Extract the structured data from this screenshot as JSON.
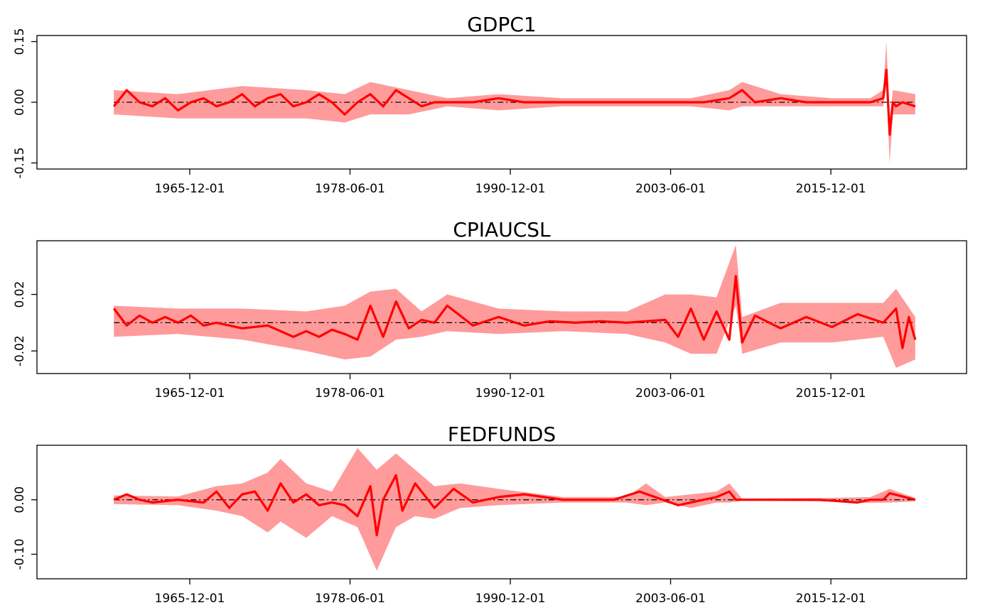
{
  "chart_data": [
    {
      "type": "area",
      "title": "GDPC1",
      "x_ticks": [
        "1965-12-01",
        "1978-06-01",
        "1990-12-01",
        "2003-06-01",
        "2015-12-01"
      ],
      "y_ticks": [
        -0.15,
        0.0,
        0.15
      ],
      "y_tick_labels": [
        "-0.15",
        "0.00",
        "0.15"
      ],
      "ylim": [
        -0.165,
        0.165
      ],
      "xlim": [
        1954.0,
        2026.5
      ],
      "grid": false,
      "legend": "none",
      "series": [
        {
          "role": "mean",
          "color": "#ff0000",
          "x": [
            1960.0,
            1961.0,
            1962.0,
            1963.0,
            1964.0,
            1965.0,
            1966.0,
            1967.0,
            1968.0,
            1969.0,
            1970.0,
            1971.0,
            1972.0,
            1973.0,
            1974.0,
            1975.0,
            1976.0,
            1977.0,
            1978.0,
            1979.0,
            1980.0,
            1981.0,
            1982.0,
            1983.0,
            1984.0,
            1985.0,
            1986.0,
            1987.0,
            1988.0,
            1990.0,
            1992.0,
            1994.0,
            1996.0,
            1998.0,
            2000.0,
            2002.0,
            2004.0,
            2006.0,
            2008.0,
            2009.0,
            2010.0,
            2012.0,
            2014.0,
            2016.0,
            2018.0,
            2019.0,
            2020.0,
            2020.25,
            2020.5,
            2020.75,
            2021.0,
            2021.5,
            2022.5
          ],
          "y": [
            -0.01,
            0.03,
            0.0,
            -0.01,
            0.01,
            -0.02,
            0.0,
            0.01,
            -0.01,
            0.0,
            0.02,
            -0.01,
            0.01,
            0.02,
            -0.01,
            0.0,
            0.02,
            0.0,
            -0.03,
            0.0,
            0.02,
            -0.01,
            0.03,
            0.01,
            -0.01,
            0.0,
            0.0,
            0.0,
            0.0,
            0.01,
            0.0,
            0.0,
            0.0,
            0.0,
            0.0,
            0.0,
            0.0,
            0.0,
            0.01,
            0.03,
            0.0,
            0.01,
            0.0,
            0.0,
            0.0,
            0.0,
            0.01,
            0.08,
            -0.08,
            0.0,
            -0.01,
            0.0,
            -0.01
          ]
        },
        {
          "role": "upper",
          "color": "#ff9b9b",
          "x": [
            1960.0,
            1965.0,
            1970.0,
            1975.0,
            1978.0,
            1980.0,
            1983.0,
            1986.0,
            1990.0,
            1995.0,
            2000.0,
            2005.0,
            2008.0,
            2009.0,
            2012.0,
            2016.0,
            2019.0,
            2020.0,
            2020.25,
            2020.5,
            2020.75,
            2022.5
          ],
          "y": [
            0.03,
            0.02,
            0.04,
            0.03,
            0.02,
            0.05,
            0.03,
            0.01,
            0.02,
            0.01,
            0.01,
            0.01,
            0.03,
            0.05,
            0.02,
            0.01,
            0.01,
            0.03,
            0.15,
            -0.04,
            0.03,
            0.02
          ]
        },
        {
          "role": "lower",
          "color": "#ff9b9b",
          "x": [
            1960.0,
            1965.0,
            1970.0,
            1975.0,
            1978.0,
            1980.0,
            1983.0,
            1986.0,
            1990.0,
            1995.0,
            2000.0,
            2005.0,
            2008.0,
            2009.0,
            2012.0,
            2016.0,
            2019.0,
            2020.0,
            2020.25,
            2020.5,
            2020.75,
            2022.5
          ],
          "y": [
            -0.03,
            -0.04,
            -0.04,
            -0.04,
            -0.05,
            -0.03,
            -0.03,
            -0.01,
            -0.02,
            -0.01,
            -0.01,
            -0.01,
            -0.02,
            -0.01,
            -0.01,
            -0.01,
            -0.01,
            -0.01,
            0.04,
            -0.15,
            -0.03,
            -0.03
          ]
        }
      ]
    },
    {
      "type": "area",
      "title": "CPIAUCSL",
      "x_ticks": [
        "1965-12-01",
        "1978-06-01",
        "1990-12-01",
        "2003-06-01",
        "2015-12-01"
      ],
      "y_ticks": [
        -0.02,
        0.02
      ],
      "y_tick_labels": [
        "-0.02",
        "0.02"
      ],
      "ylim": [
        -0.036,
        0.058
      ],
      "xlim": [
        1954.0,
        2026.5
      ],
      "grid": false,
      "legend": "none",
      "series": [
        {
          "role": "mean",
          "color": "#ff0000",
          "x": [
            1960.0,
            1961.0,
            1962.0,
            1963.0,
            1964.0,
            1965.0,
            1966.0,
            1967.0,
            1968.0,
            1970.0,
            1972.0,
            1974.0,
            1975.0,
            1976.0,
            1977.0,
            1978.0,
            1979.0,
            1980.0,
            1981.0,
            1982.0,
            1983.0,
            1984.0,
            1985.0,
            1986.0,
            1988.0,
            1990.0,
            1992.0,
            1994.0,
            1996.0,
            1998.0,
            2000.0,
            2003.0,
            2004.0,
            2005.0,
            2006.0,
            2007.0,
            2008.0,
            2008.5,
            2009.0,
            2010.0,
            2012.0,
            2014.0,
            2016.0,
            2018.0,
            2020.0,
            2021.0,
            2021.5,
            2022.0,
            2022.5
          ],
          "y": [
            0.01,
            -0.002,
            0.005,
            0.0,
            0.004,
            0.0,
            0.005,
            -0.002,
            0.0,
            -0.004,
            -0.002,
            -0.01,
            -0.006,
            -0.01,
            -0.005,
            -0.008,
            -0.012,
            0.012,
            -0.01,
            0.015,
            -0.004,
            0.002,
            0.0,
            0.012,
            -0.002,
            0.004,
            -0.002,
            0.001,
            0.0,
            0.001,
            0.0,
            0.002,
            -0.01,
            0.01,
            -0.012,
            0.008,
            -0.012,
            0.033,
            -0.014,
            0.005,
            -0.004,
            0.004,
            -0.003,
            0.006,
            0.0,
            0.01,
            -0.018,
            0.004,
            -0.012
          ]
        },
        {
          "role": "upper",
          "color": "#ff9b9b",
          "x": [
            1960.0,
            1965.0,
            1970.0,
            1975.0,
            1978.0,
            1980.0,
            1982.0,
            1984.0,
            1986.0,
            1990.0,
            1995.0,
            2000.0,
            2003.0,
            2005.0,
            2007.0,
            2008.5,
            2009.0,
            2012.0,
            2016.0,
            2020.0,
            2021.0,
            2022.5
          ],
          "y": [
            0.012,
            0.01,
            0.01,
            0.008,
            0.012,
            0.022,
            0.024,
            0.008,
            0.02,
            0.01,
            0.008,
            0.008,
            0.02,
            0.02,
            0.018,
            0.055,
            0.004,
            0.014,
            0.014,
            0.014,
            0.024,
            0.004
          ]
        },
        {
          "role": "lower",
          "color": "#ff9b9b",
          "x": [
            1960.0,
            1965.0,
            1970.0,
            1975.0,
            1978.0,
            1980.0,
            1982.0,
            1984.0,
            1986.0,
            1990.0,
            1995.0,
            2000.0,
            2003.0,
            2005.0,
            2007.0,
            2008.5,
            2009.0,
            2012.0,
            2016.0,
            2020.0,
            2021.0,
            2022.5
          ],
          "y": [
            -0.01,
            -0.008,
            -0.012,
            -0.02,
            -0.026,
            -0.024,
            -0.012,
            -0.01,
            -0.006,
            -0.008,
            -0.006,
            -0.008,
            -0.014,
            -0.022,
            -0.022,
            0.012,
            -0.022,
            -0.014,
            -0.014,
            -0.01,
            -0.032,
            -0.026
          ]
        }
      ]
    },
    {
      "type": "area",
      "title": "FEDFUNDS",
      "x_ticks": [
        "1965-12-01",
        "1978-06-01",
        "1990-12-01",
        "2003-06-01",
        "2015-12-01"
      ],
      "y_ticks": [
        -0.1,
        0.0
      ],
      "y_tick_labels": [
        "-0.10",
        "0.00"
      ],
      "ylim": [
        -0.145,
        0.1
      ],
      "xlim": [
        1954.0,
        2026.5
      ],
      "grid": false,
      "legend": "none",
      "series": [
        {
          "role": "mean",
          "color": "#ff0000",
          "x": [
            1960.0,
            1961.0,
            1962.0,
            1963.0,
            1965.0,
            1967.0,
            1968.0,
            1969.0,
            1970.0,
            1971.0,
            1972.0,
            1973.0,
            1974.0,
            1975.0,
            1976.0,
            1977.0,
            1978.0,
            1979.0,
            1980.0,
            1980.5,
            1981.0,
            1982.0,
            1982.5,
            1983.5,
            1985.0,
            1986.5,
            1988.0,
            1990.0,
            1992.0,
            1995.0,
            1997.0,
            1999.0,
            2001.0,
            2004.0,
            2006.0,
            2007.0,
            2008.0,
            2008.5,
            2010.0,
            2015.0,
            2018.0,
            2019.0,
            2020.0,
            2020.5,
            2022.5
          ],
          "y": [
            0.0,
            0.01,
            0.0,
            -0.005,
            0.0,
            -0.005,
            0.015,
            -0.015,
            0.01,
            0.015,
            -0.02,
            0.03,
            -0.005,
            0.01,
            -0.01,
            -0.005,
            -0.01,
            -0.03,
            0.025,
            -0.065,
            0.0,
            0.045,
            -0.02,
            0.03,
            -0.015,
            0.02,
            -0.005,
            0.005,
            0.01,
            0.0,
            0.0,
            0.0,
            0.015,
            -0.01,
            0.0,
            0.005,
            0.015,
            0.0,
            0.0,
            0.0,
            -0.005,
            0.0,
            0.0,
            0.012,
            0.0
          ]
        },
        {
          "role": "upper",
          "color": "#ff9b9b",
          "x": [
            1960.0,
            1965.0,
            1968.0,
            1970.0,
            1972.0,
            1973.0,
            1975.0,
            1977.0,
            1979.0,
            1980.5,
            1982.0,
            1983.5,
            1985.0,
            1987.0,
            1990.0,
            1995.0,
            2000.0,
            2001.5,
            2003.0,
            2007.0,
            2008.0,
            2009.0,
            2015.0,
            2019.0,
            2020.5,
            2022.5
          ],
          "y": [
            0.008,
            0.006,
            0.025,
            0.03,
            0.05,
            0.075,
            0.03,
            0.015,
            0.095,
            0.055,
            0.085,
            0.055,
            0.025,
            0.03,
            0.02,
            0.005,
            0.005,
            0.03,
            0.005,
            0.015,
            0.03,
            0.002,
            0.003,
            0.005,
            0.02,
            0.003
          ]
        },
        {
          "role": "lower",
          "color": "#ff9b9b",
          "x": [
            1960.0,
            1965.0,
            1968.0,
            1970.0,
            1972.0,
            1973.0,
            1975.0,
            1977.0,
            1979.0,
            1980.5,
            1982.0,
            1983.5,
            1985.0,
            1987.0,
            1990.0,
            1995.0,
            2000.0,
            2001.5,
            2003.0,
            2005.0,
            2007.0,
            2008.0,
            2009.0,
            2015.0,
            2019.0,
            2020.5,
            2022.5
          ],
          "y": [
            -0.008,
            -0.01,
            -0.02,
            -0.03,
            -0.06,
            -0.04,
            -0.07,
            -0.03,
            -0.05,
            -0.13,
            -0.05,
            -0.03,
            -0.035,
            -0.015,
            -0.01,
            -0.005,
            -0.005,
            -0.01,
            -0.005,
            -0.015,
            -0.005,
            -0.005,
            -0.002,
            -0.003,
            -0.006,
            -0.005,
            -0.003
          ]
        }
      ]
    }
  ]
}
